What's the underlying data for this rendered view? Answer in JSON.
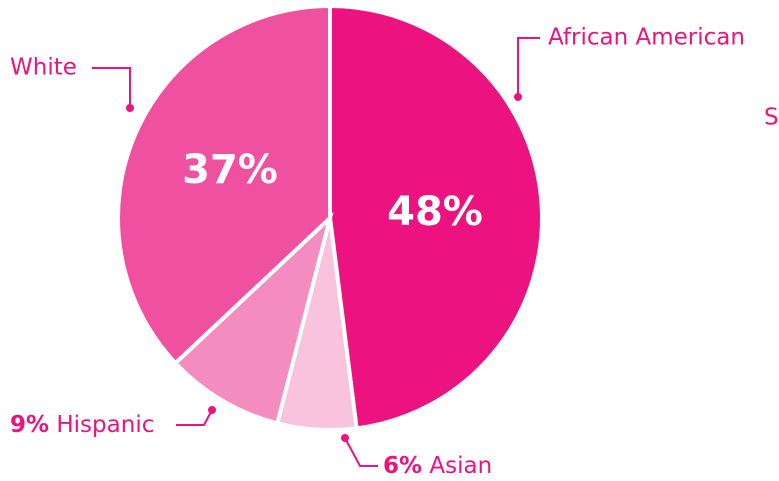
{
  "chart_data": {
    "type": "pie",
    "categories": [
      "African American",
      "Asian",
      "Hispanic",
      "White"
    ],
    "values": [
      48,
      6,
      9,
      37
    ],
    "value_labels": [
      "48%",
      "6%",
      "9%",
      "37%"
    ],
    "colors": [
      "#ec1380",
      "#f9c3dd",
      "#f48cbf",
      "#f050a0"
    ],
    "annotations": [
      "S"
    ]
  }
}
